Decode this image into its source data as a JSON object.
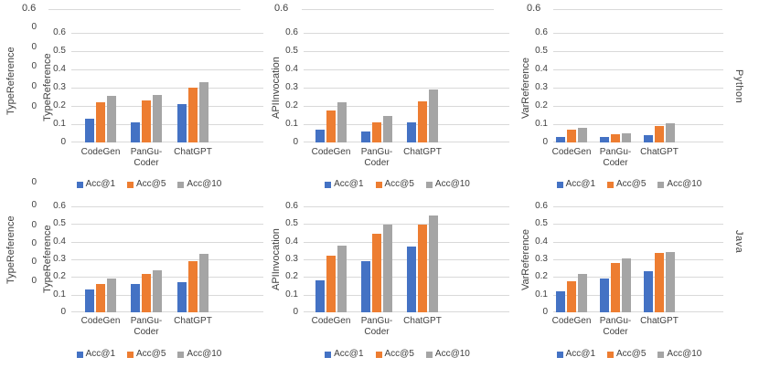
{
  "figure": {
    "languages": [
      "Python",
      "Java"
    ],
    "legend_labels": [
      "Acc@1",
      "Acc@5",
      "Acc@10"
    ],
    "series_colors": {
      "Acc@1": "#4472C4",
      "Acc@5": "#ED7D31",
      "Acc@10": "#A5A5A5"
    },
    "grid_color": "#D9D9D9",
    "text_color": "#404040",
    "outer_axis": {
      "top_tick_label": "0.6",
      "left_column_title": "TypeReference",
      "top_row_zero_ticks": [
        "0",
        "0",
        "0",
        "0",
        "0"
      ],
      "bottom_row_zero_ticks": [
        "0",
        "0",
        "0",
        "0",
        "0",
        "0"
      ]
    }
  },
  "chart_data": [
    {
      "type": "bar",
      "language": "Python",
      "ylabel": "TypeReference",
      "ylim": [
        0,
        0.6
      ],
      "grid": true,
      "legend_position": "bottom",
      "yticks": [
        "0.6",
        "0.5",
        "0.4",
        "0.3",
        "0.2",
        "0.1",
        "0"
      ],
      "categories": [
        "CodeGen",
        "PanGu-\nCoder",
        "ChatGPT"
      ],
      "series": [
        {
          "name": "Acc@1",
          "color": "#4472C4",
          "values": [
            0.13,
            0.11,
            0.21
          ]
        },
        {
          "name": "Acc@5",
          "color": "#ED7D31",
          "values": [
            0.22,
            0.23,
            0.3
          ]
        },
        {
          "name": "Acc@10",
          "color": "#A5A5A5",
          "values": [
            0.255,
            0.26,
            0.33
          ]
        }
      ]
    },
    {
      "type": "bar",
      "language": "Python",
      "ylabel": "APIInvocation",
      "ylim": [
        0,
        0.6
      ],
      "grid": true,
      "legend_position": "bottom",
      "yticks": [
        "0.6",
        "0.5",
        "0.4",
        "0.3",
        "0.2",
        "0.1",
        "0"
      ],
      "categories": [
        "CodeGen",
        "PanGu-\nCoder",
        "ChatGPT"
      ],
      "series": [
        {
          "name": "Acc@1",
          "color": "#4472C4",
          "values": [
            0.07,
            0.06,
            0.11
          ]
        },
        {
          "name": "Acc@5",
          "color": "#ED7D31",
          "values": [
            0.175,
            0.11,
            0.225
          ]
        },
        {
          "name": "Acc@10",
          "color": "#A5A5A5",
          "values": [
            0.22,
            0.145,
            0.29
          ]
        }
      ]
    },
    {
      "type": "bar",
      "language": "Python",
      "ylabel": "VarReference",
      "ylim": [
        0,
        0.6
      ],
      "grid": true,
      "legend_position": "bottom",
      "yticks": [
        "0.6",
        "0.5",
        "0.4",
        "0.3",
        "0.2",
        "0.1",
        "0"
      ],
      "categories": [
        "CodeGen",
        "PanGu-\nCoder",
        "ChatGPT"
      ],
      "series": [
        {
          "name": "Acc@1",
          "color": "#4472C4",
          "values": [
            0.03,
            0.03,
            0.04
          ]
        },
        {
          "name": "Acc@5",
          "color": "#ED7D31",
          "values": [
            0.07,
            0.045,
            0.09
          ]
        },
        {
          "name": "Acc@10",
          "color": "#A5A5A5",
          "values": [
            0.08,
            0.05,
            0.105
          ]
        }
      ]
    },
    {
      "type": "bar",
      "language": "Java",
      "ylabel": "TypeReference",
      "ylim": [
        0,
        0.6
      ],
      "grid": true,
      "legend_position": "bottom",
      "yticks": [
        "0.6",
        "0.5",
        "0.4",
        "0.3",
        "0.2",
        "0.1",
        "0"
      ],
      "categories": [
        "CodeGen",
        "PanGu-\nCoder",
        "ChatGPT"
      ],
      "series": [
        {
          "name": "Acc@1",
          "color": "#4472C4",
          "values": [
            0.13,
            0.16,
            0.17
          ]
        },
        {
          "name": "Acc@5",
          "color": "#ED7D31",
          "values": [
            0.16,
            0.215,
            0.29
          ]
        },
        {
          "name": "Acc@10",
          "color": "#A5A5A5",
          "values": [
            0.19,
            0.24,
            0.33
          ]
        }
      ]
    },
    {
      "type": "bar",
      "language": "Java",
      "ylabel": "APIInvocation",
      "ylim": [
        0,
        0.6
      ],
      "grid": true,
      "legend_position": "bottom",
      "yticks": [
        "0.6",
        "0.5",
        "0.4",
        "0.3",
        "0.2",
        "0.1",
        "0"
      ],
      "categories": [
        "CodeGen",
        "PanGu-\nCoder",
        "ChatGPT"
      ],
      "series": [
        {
          "name": "Acc@1",
          "color": "#4472C4",
          "values": [
            0.18,
            0.29,
            0.37
          ]
        },
        {
          "name": "Acc@5",
          "color": "#ED7D31",
          "values": [
            0.32,
            0.445,
            0.495
          ]
        },
        {
          "name": "Acc@10",
          "color": "#A5A5A5",
          "values": [
            0.38,
            0.495,
            0.55
          ]
        }
      ]
    },
    {
      "type": "bar",
      "language": "Java",
      "ylabel": "VarReference",
      "ylim": [
        0,
        0.6
      ],
      "grid": true,
      "legend_position": "bottom",
      "yticks": [
        "0.6",
        "0.5",
        "0.4",
        "0.3",
        "0.2",
        "0.1",
        "0"
      ],
      "categories": [
        "CodeGen",
        "PanGu-\nCoder",
        "ChatGPT"
      ],
      "series": [
        {
          "name": "Acc@1",
          "color": "#4472C4",
          "values": [
            0.12,
            0.19,
            0.235
          ]
        },
        {
          "name": "Acc@5",
          "color": "#ED7D31",
          "values": [
            0.175,
            0.28,
            0.335
          ]
        },
        {
          "name": "Acc@10",
          "color": "#A5A5A5",
          "values": [
            0.215,
            0.305,
            0.34
          ]
        }
      ]
    }
  ]
}
